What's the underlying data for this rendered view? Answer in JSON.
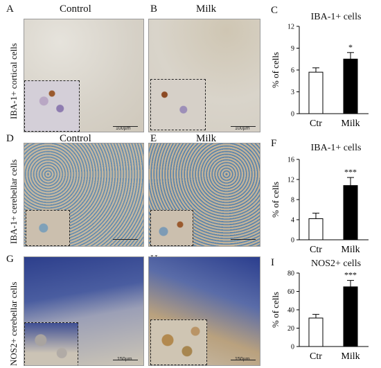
{
  "figure": {
    "rows": [
      {
        "row_label": "IBA-1+ cortical cells",
        "panels": [
          {
            "letter": "A",
            "title": "Control",
            "scale_text": "100µm"
          },
          {
            "letter": "B",
            "title": "Milk",
            "scale_text": "100µm"
          }
        ]
      },
      {
        "row_label": "IBA-1+ cerebellar cells",
        "panels": [
          {
            "letter": "D",
            "title": "Control",
            "scale_text": ""
          },
          {
            "letter": "E",
            "title": "Milk",
            "scale_text": ""
          }
        ]
      },
      {
        "row_label": "NOS2+ cerebellar cells",
        "panels": [
          {
            "letter": "G",
            "title": "",
            "scale_text": "150µm"
          },
          {
            "letter": "H",
            "title": "",
            "scale_text": "150µm"
          }
        ]
      }
    ],
    "colors": {
      "cortex_bg": "#d8d4cc",
      "cerebellum_bg": "#c9b99e",
      "nuclei_blue": "#3a4f9e",
      "iba_brown": "#8a4b20",
      "nos_bg": "#c8c0b0",
      "bar_control": "#ffffff",
      "bar_milk": "#000000"
    }
  },
  "chart_data": [
    {
      "letter": "C",
      "type": "bar",
      "title": "IBA-1+ cells",
      "ylabel": "% of cells",
      "categories": [
        "Ctr",
        "Milk"
      ],
      "values": [
        5.7,
        7.5
      ],
      "errors": [
        0.6,
        0.9
      ],
      "significance": [
        "",
        "*"
      ],
      "ylim": [
        0,
        12
      ],
      "yticks": [
        0,
        3,
        6,
        9,
        12
      ]
    },
    {
      "letter": "F",
      "type": "bar",
      "title": "IBA-1+ cells",
      "ylabel": "% of cells",
      "categories": [
        "Ctr",
        "Milk"
      ],
      "values": [
        4.2,
        10.8
      ],
      "errors": [
        1.1,
        1.6
      ],
      "significance": [
        "",
        "***"
      ],
      "ylim": [
        0,
        16
      ],
      "yticks": [
        0,
        4,
        8,
        12,
        16
      ]
    },
    {
      "letter": "I",
      "type": "bar",
      "title": "NOS2+ cells",
      "ylabel": "% of cells",
      "categories": [
        "Ctr",
        "Milk"
      ],
      "values": [
        31,
        65
      ],
      "errors": [
        4,
        7
      ],
      "significance": [
        "",
        "***"
      ],
      "ylim": [
        0,
        80
      ],
      "yticks": [
        0,
        20,
        40,
        60,
        80
      ]
    }
  ]
}
